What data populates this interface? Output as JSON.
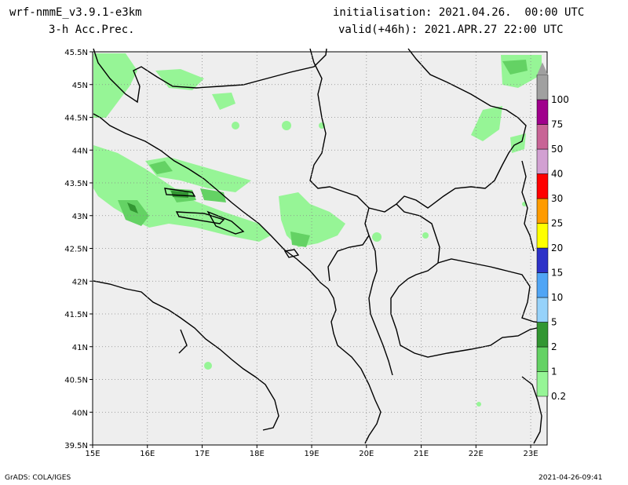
{
  "header": {
    "model": "wrf-nmmE_v3.9.1-e3km",
    "field": "3-h Acc.Prec.",
    "init": "initialisation: 2021.04.26.  00:00 UTC",
    "valid": "valid(+46h): 2021.APR.27 22:00 UTC"
  },
  "map": {
    "lon_range": [
      15,
      23.3
    ],
    "lat_range": [
      39.5,
      45.5
    ],
    "lon_ticks": [
      "15E",
      "16E",
      "17E",
      "18E",
      "19E",
      "20E",
      "21E",
      "22E",
      "23E"
    ],
    "lat_ticks": [
      "45.5N",
      "45N",
      "44.5N",
      "44N",
      "43.5N",
      "43N",
      "42.5N",
      "42N",
      "41.5N",
      "41N",
      "40.5N",
      "40N",
      "39.5N"
    ],
    "background_color": "#eeeeee",
    "gridlines": "dotted"
  },
  "colorbar": {
    "labels": [
      "0.2",
      "1",
      "2",
      "5",
      "10",
      "15",
      "20",
      "25",
      "30",
      "40",
      "50",
      "75",
      "100"
    ],
    "colors": [
      "#96f596",
      "#64d264",
      "#329632",
      "#96d2fa",
      "#50a5f5",
      "#2d32c8",
      "#ffff00",
      "#ff9b00",
      "#ff0000",
      "#d2a0d2",
      "#c86496",
      "#a0008c",
      "#a0a0a0"
    ]
  },
  "footer": {
    "left": "GrADS: COLA/IGES",
    "right": "2021-04-26-09:41"
  }
}
